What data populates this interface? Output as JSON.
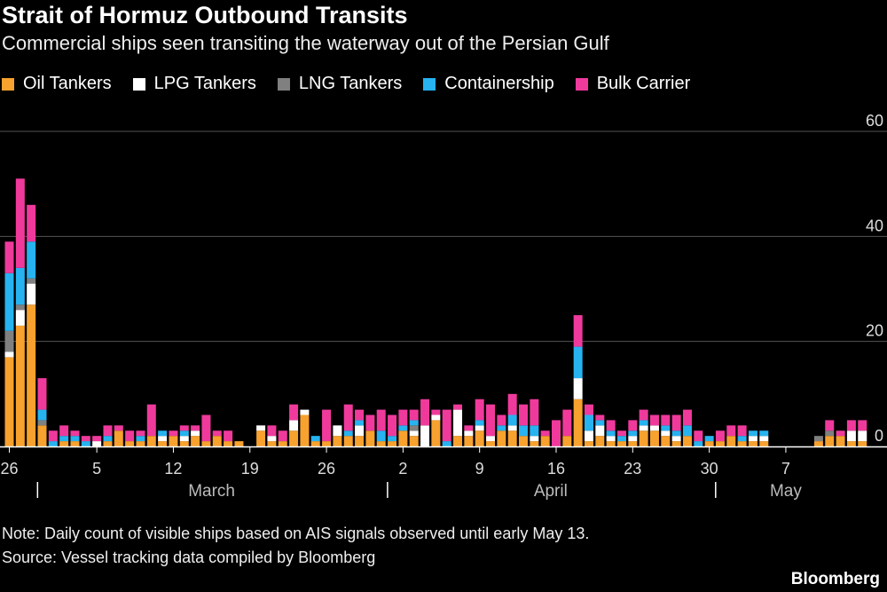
{
  "title": "Strait of Hormuz Outbound Transits",
  "subtitle": "Commercial ships seen transiting the waterway out of the Persian Gulf",
  "note": "Note: Daily count of visible ships based on AIS signals observed until early May 13.",
  "source": "Source: Vessel tracking data compiled by Bloomberg",
  "brand": "Bloomberg",
  "colors": {
    "oil": "#f7a12e",
    "lpg": "#ffffff",
    "lng": "#808080",
    "container": "#27b3f0",
    "bulk": "#ef3a9c"
  },
  "chart_data": {
    "type": "bar",
    "stacked": true,
    "ylim": [
      0,
      60
    ],
    "yticks": [
      0,
      20,
      40,
      60
    ],
    "grid": true,
    "legend_position": "top",
    "x_tick_labels": [
      {
        "label": "26",
        "index": 0
      },
      {
        "label": "5",
        "index": 8
      },
      {
        "label": "12",
        "index": 15
      },
      {
        "label": "19",
        "index": 22
      },
      {
        "label": "26",
        "index": 29
      },
      {
        "label": "2",
        "index": 36
      },
      {
        "label": "9",
        "index": 43
      },
      {
        "label": "16",
        "index": 50
      },
      {
        "label": "23",
        "index": 57
      },
      {
        "label": "30",
        "index": 64
      },
      {
        "label": "7",
        "index": 71
      }
    ],
    "months": [
      {
        "label": "March",
        "start_index": 3,
        "end_index": 34
      },
      {
        "label": "April",
        "start_index": 35,
        "end_index": 64
      },
      {
        "label": "May",
        "start_index": 65,
        "end_index": 77
      }
    ],
    "series": [
      {
        "name": "Oil Tankers",
        "key": "oil",
        "values": [
          17,
          23,
          27,
          4,
          0,
          1,
          1,
          0,
          0,
          1,
          3,
          1,
          1,
          2,
          1,
          2,
          1,
          2,
          1,
          2,
          1,
          1,
          0,
          3,
          1,
          1,
          3,
          6,
          1,
          1,
          2,
          2,
          2,
          3,
          1,
          1,
          3,
          2,
          0,
          5,
          0,
          2,
          2,
          3,
          1,
          3,
          3,
          2,
          1,
          2,
          0,
          2,
          9,
          1,
          2,
          1,
          1,
          1,
          3,
          3,
          2,
          1,
          2,
          0,
          1,
          1,
          2,
          1,
          1,
          1,
          0,
          0,
          0,
          0,
          1,
          2,
          2,
          1,
          1
        ]
      },
      {
        "name": "LPG Tankers",
        "key": "lpg",
        "values": [
          1,
          3,
          4,
          0,
          0,
          0,
          0,
          0,
          1,
          0,
          0,
          0,
          0,
          0,
          1,
          0,
          1,
          1,
          0,
          0,
          0,
          0,
          0,
          1,
          1,
          0,
          2,
          1,
          0,
          0,
          2,
          0,
          2,
          0,
          0,
          0,
          0,
          1,
          4,
          1,
          0,
          5,
          1,
          1,
          1,
          0,
          1,
          0,
          1,
          0,
          0,
          0,
          4,
          2,
          2,
          1,
          0,
          1,
          1,
          1,
          1,
          1,
          0,
          0,
          0,
          0,
          0,
          0,
          1,
          1,
          0,
          0,
          0,
          0,
          0,
          0,
          0,
          2,
          2
        ]
      },
      {
        "name": "LNG Tankers",
        "key": "lng",
        "values": [
          4,
          1,
          1,
          1,
          0,
          0,
          0,
          0,
          0,
          0,
          0,
          0,
          0,
          0,
          0,
          0,
          0,
          0,
          0,
          0,
          0,
          0,
          0,
          0,
          0,
          0,
          0,
          0,
          0,
          0,
          0,
          0,
          0,
          0,
          0,
          0,
          0,
          1,
          0,
          0,
          0,
          0,
          0,
          0,
          0,
          0,
          0,
          0,
          0,
          0,
          0,
          0,
          0,
          0,
          0,
          0,
          0,
          0,
          0,
          0,
          0,
          0,
          0,
          0,
          0,
          0,
          0,
          0,
          0,
          0,
          0,
          0,
          0,
          0,
          1,
          1,
          0,
          0,
          0
        ]
      },
      {
        "name": "Containership",
        "key": "container",
        "values": [
          11,
          7,
          7,
          2,
          1,
          1,
          1,
          1,
          0,
          1,
          0,
          0,
          1,
          0,
          1,
          0,
          1,
          0,
          0,
          0,
          0,
          0,
          0,
          0,
          0,
          0,
          0,
          0,
          1,
          0,
          0,
          1,
          1,
          0,
          2,
          1,
          1,
          1,
          0,
          0,
          1,
          0,
          0,
          1,
          0,
          1,
          2,
          2,
          2,
          0,
          0,
          0,
          6,
          3,
          1,
          1,
          1,
          1,
          1,
          0,
          1,
          1,
          2,
          1,
          1,
          0,
          0,
          1,
          1,
          1,
          0,
          0,
          0,
          0,
          0,
          0,
          0,
          0,
          0
        ]
      },
      {
        "name": "Bulk Carrier",
        "key": "bulk",
        "values": [
          6,
          17,
          7,
          6,
          2,
          2,
          1,
          1,
          1,
          2,
          1,
          2,
          1,
          6,
          0,
          1,
          1,
          1,
          5,
          1,
          2,
          0,
          0,
          0,
          2,
          2,
          3,
          0,
          0,
          6,
          0,
          5,
          2,
          3,
          4,
          4,
          3,
          2,
          5,
          1,
          6,
          1,
          1,
          4,
          6,
          2,
          4,
          4,
          5,
          1,
          5,
          5,
          6,
          2,
          1,
          2,
          1,
          2,
          2,
          2,
          2,
          3,
          3,
          2,
          0,
          2,
          2,
          2,
          0,
          0,
          0,
          0,
          0,
          0,
          0,
          2,
          1,
          2,
          2
        ]
      }
    ]
  }
}
